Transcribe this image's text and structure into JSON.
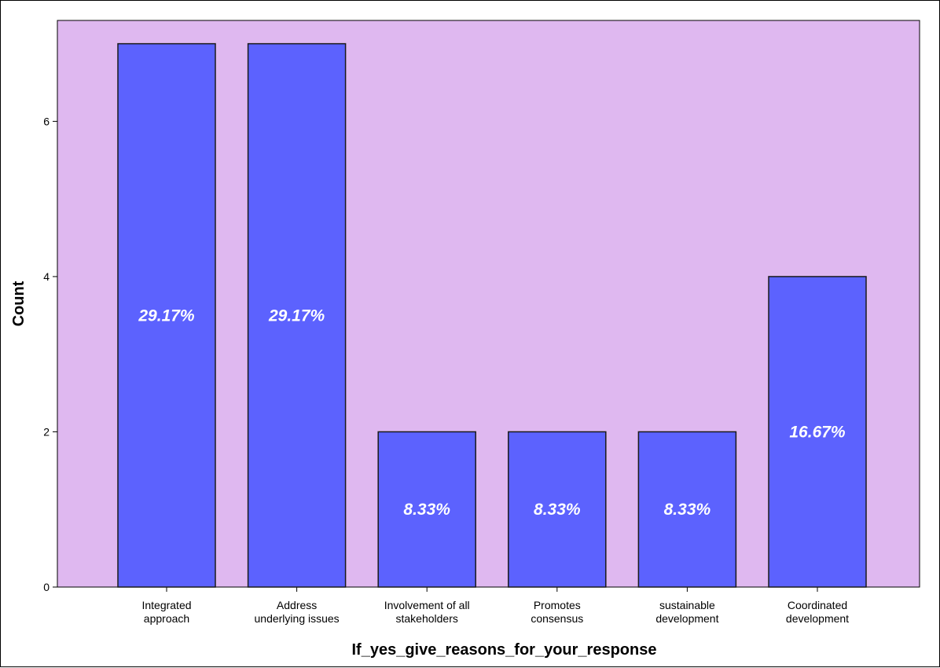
{
  "chart_data": {
    "type": "bar",
    "title": "",
    "xlabel": "If_yes_give_reasons_for_your_response",
    "ylabel": "Count",
    "categories": [
      [
        "Integrated",
        "approach"
      ],
      [
        "Address",
        "underlying issues"
      ],
      [
        "Involvement of all",
        "stakeholders"
      ],
      [
        "Promotes",
        "consensus"
      ],
      [
        "sustainable",
        "development"
      ],
      [
        "Coordinated",
        "development"
      ]
    ],
    "values": [
      7,
      7,
      2,
      2,
      2,
      4
    ],
    "data_labels": [
      "29.17%",
      "29.17%",
      "8.33%",
      "8.33%",
      "8.33%",
      "16.67%"
    ],
    "ylim": [
      0,
      7.3
    ],
    "yticks": [
      0,
      2,
      4,
      6
    ],
    "grid": false,
    "legend": "none",
    "colors": {
      "plot_background": "#dfb8f0",
      "bar_fill": "#5c62fe",
      "bar_stroke": "#1a1a1a",
      "data_label": "#ffffff"
    }
  }
}
